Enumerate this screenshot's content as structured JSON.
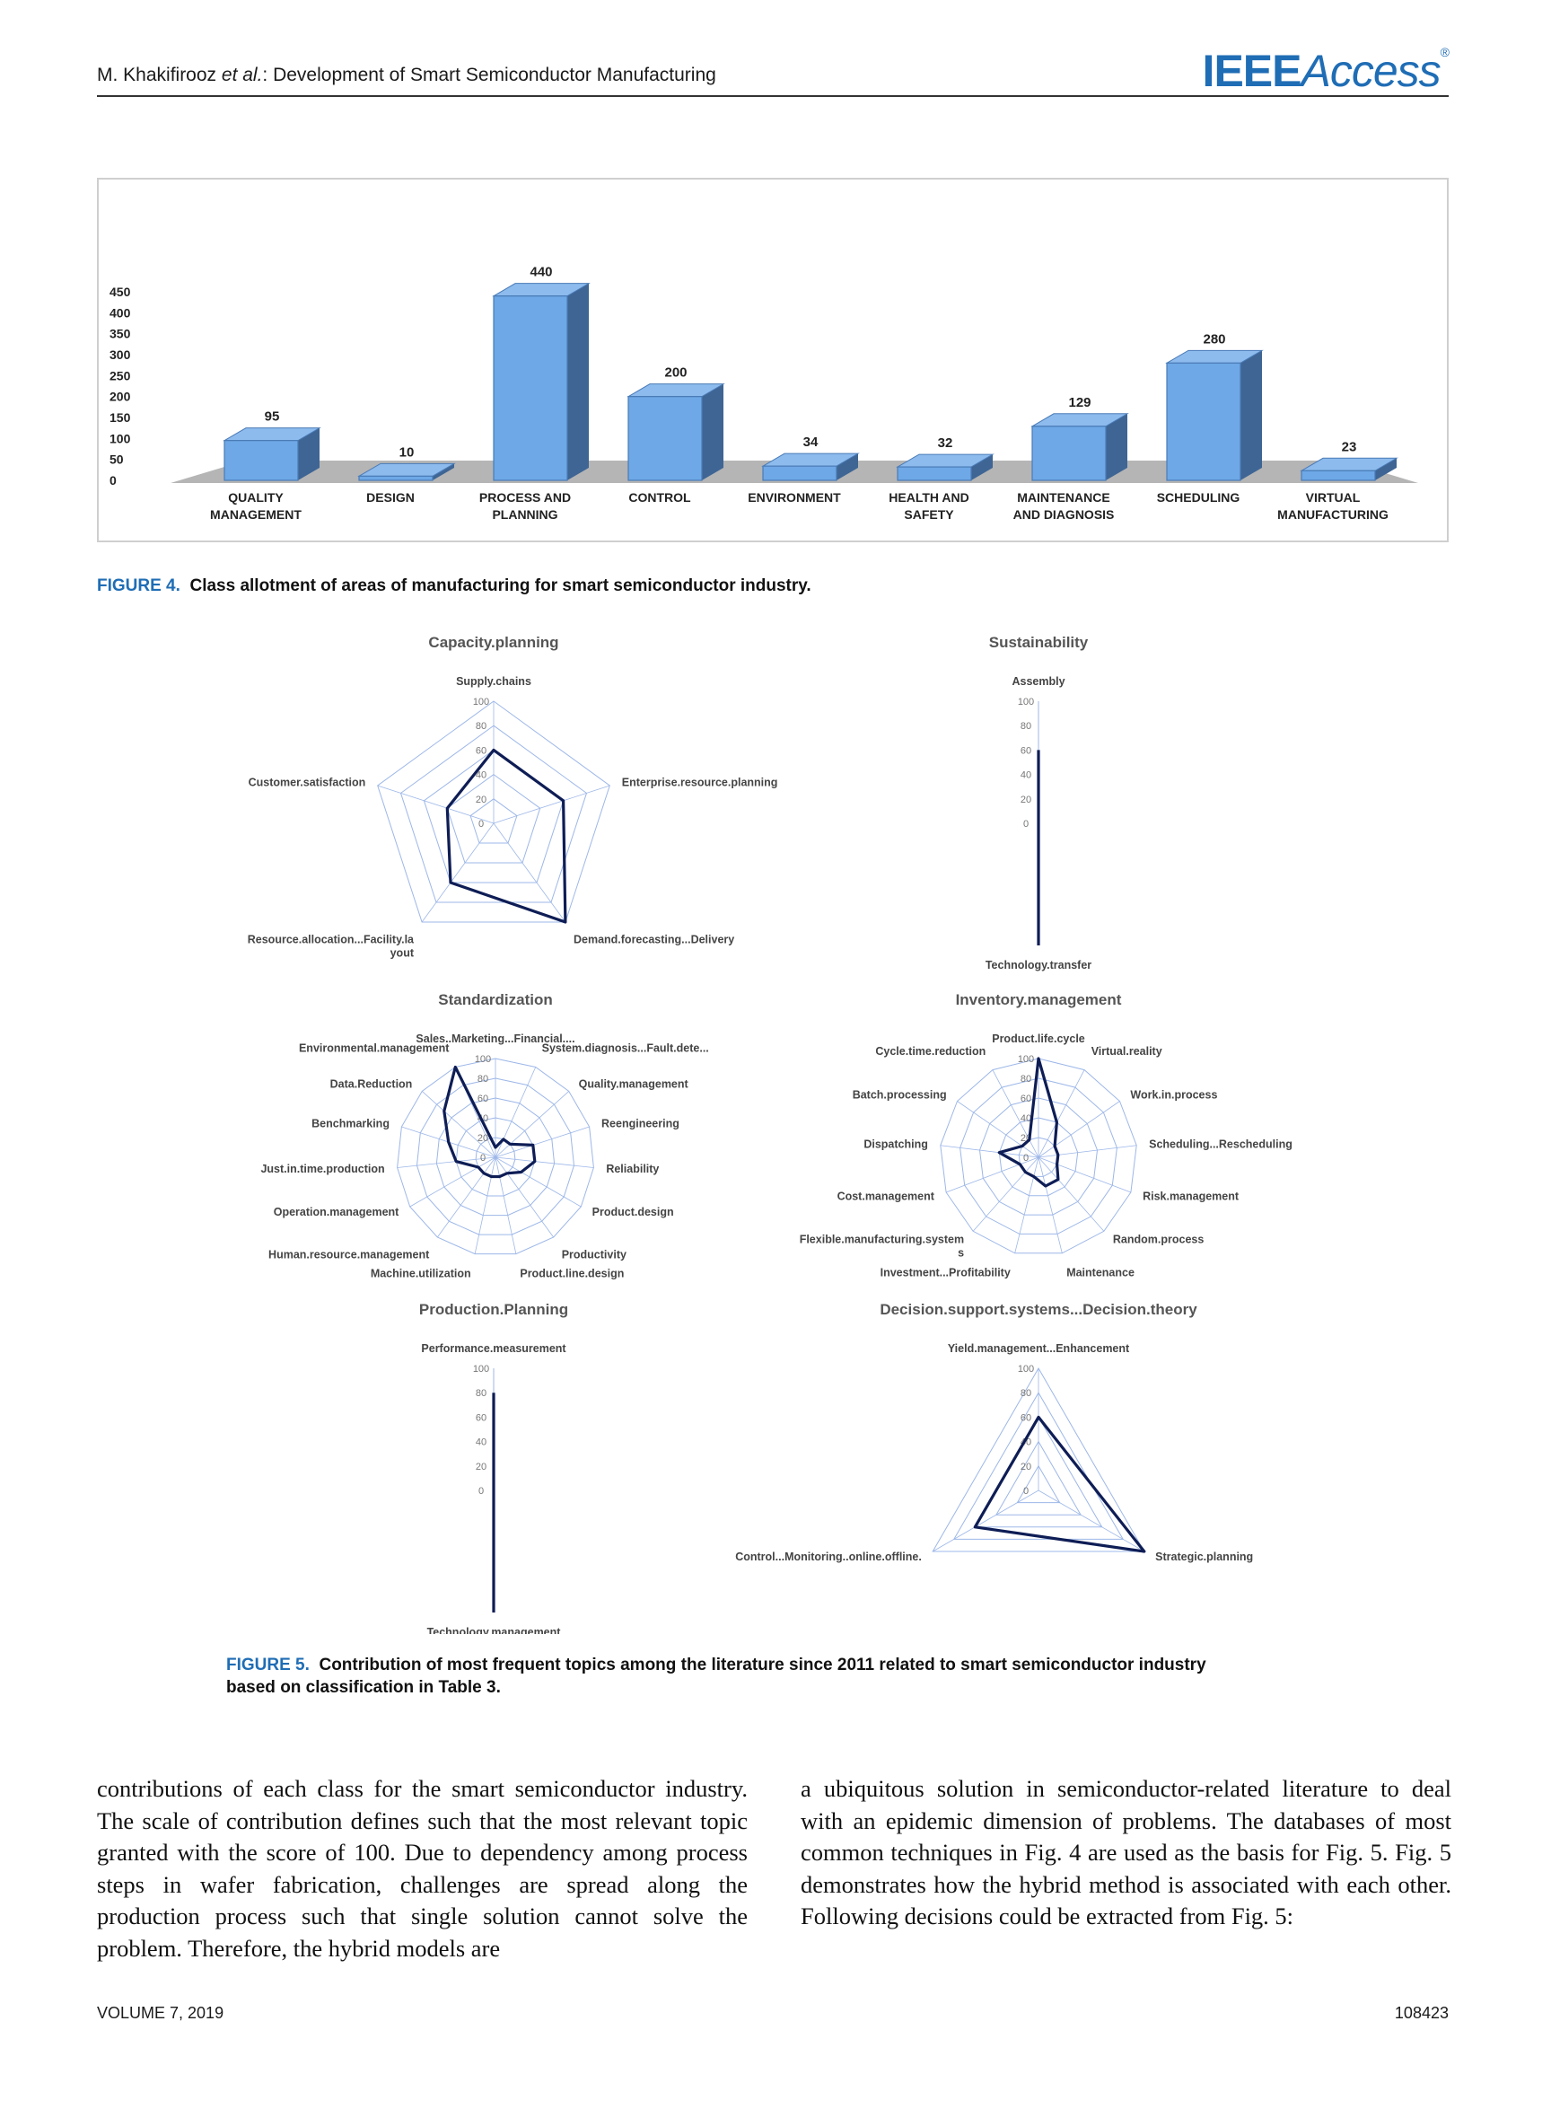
{
  "header": {
    "author_prefix": "M. Khakifirooz ",
    "author_etal": "et al.",
    "author_suffix": ": Development of Smart Semiconductor Manufacturing",
    "logo_ieee": "IEEE",
    "logo_access": "Access",
    "logo_mark": "®"
  },
  "figure4": {
    "label": "FIGURE 4.",
    "caption": "Class allotment of areas of manufacturing for smart semiconductor industry.",
    "chart_data": {
      "type": "bar",
      "categories": [
        [
          "QUALITY",
          "MANAGEMENT"
        ],
        [
          "DESIGN"
        ],
        [
          "PROCESS AND",
          "PLANNING"
        ],
        [
          "CONTROL"
        ],
        [
          "ENVIRONMENT"
        ],
        [
          "HEALTH AND",
          "SAFETY"
        ],
        [
          "MAINTENANCE",
          "AND DIAGNOSIS"
        ],
        [
          "SCHEDULING"
        ],
        [
          "VIRTUAL",
          "MANUFACTURING"
        ]
      ],
      "values": [
        95,
        10,
        440,
        200,
        34,
        32,
        129,
        280,
        23
      ],
      "yticks": [
        0,
        50,
        100,
        150,
        200,
        250,
        300,
        350,
        400,
        450
      ],
      "ylim": [
        0,
        450
      ],
      "bar_color": "#6ea8e6",
      "side_color": "#3e6594",
      "floor_color": "#b5b5b5"
    }
  },
  "figure5": {
    "label": "FIGURE 5.",
    "caption_line1": "Contribution of most frequent topics among the literature since 2011 related to smart semiconductor industry",
    "caption_line2": "based on classification in Table 3.",
    "chart_data": [
      {
        "type": "radar",
        "title": "Capacity.planning",
        "rticks": [
          0,
          20,
          40,
          60,
          80,
          100
        ],
        "axes": [
          {
            "label": [
              "Supply.chains"
            ],
            "value": 60
          },
          {
            "label": [
              "Enterprise.resource.planning"
            ],
            "value": 60
          },
          {
            "label": [
              "Demand.forecasting...Delivery"
            ],
            "value": 100
          },
          {
            "label": [
              "Resource.allocation...Facility.la",
              "yout"
            ],
            "value": 60
          },
          {
            "label": [
              "Customer.satisfaction"
            ],
            "value": 40
          }
        ]
      },
      {
        "type": "radar",
        "title": "Sustainability",
        "rticks": [
          0,
          20,
          40,
          60,
          80,
          100
        ],
        "axes": [
          {
            "label": [
              "Assembly"
            ],
            "value": 60
          },
          {
            "label": [
              "Technology.transfer"
            ],
            "value": 100
          }
        ]
      },
      {
        "type": "radar",
        "title": "Standardization",
        "rticks": [
          0,
          20,
          40,
          60,
          80,
          100
        ],
        "axes": [
          {
            "label": [
              "Sales..Marketing...Financial...."
            ],
            "value": 10
          },
          {
            "label": [
              "System.diagnosis...Fault.dete..."
            ],
            "value": 20
          },
          {
            "label": [
              "Quality.management"
            ],
            "value": 20
          },
          {
            "label": [
              "Reengineering"
            ],
            "value": 40
          },
          {
            "label": [
              "Reliability"
            ],
            "value": 40
          },
          {
            "label": [
              "Product.design"
            ],
            "value": 30
          },
          {
            "label": [
              "Productivity"
            ],
            "value": 20
          },
          {
            "label": [
              "Product.line.design"
            ],
            "value": 20
          },
          {
            "label": [
              "Machine.utilization"
            ],
            "value": 20
          },
          {
            "label": [
              "Human.resource.management"
            ],
            "value": 20
          },
          {
            "label": [
              "Operation.management"
            ],
            "value": 20
          },
          {
            "label": [
              "Just.in.time.production"
            ],
            "value": 40
          },
          {
            "label": [
              "Benchmarking"
            ],
            "value": 50
          },
          {
            "label": [
              "Data.Reduction"
            ],
            "value": 70
          },
          {
            "label": [
              "Environmental.management"
            ],
            "value": 100
          }
        ]
      },
      {
        "type": "radar",
        "title": "Inventory.management",
        "rticks": [
          0,
          20,
          40,
          60,
          80,
          100
        ],
        "axes": [
          {
            "label": [
              "Product.life.cycle"
            ],
            "value": 100
          },
          {
            "label": [
              "Virtual.reality"
            ],
            "value": 40
          },
          {
            "label": [
              "Work.in.process"
            ],
            "value": 20
          },
          {
            "label": [
              "Scheduling...Rescheduling"
            ],
            "value": 20
          },
          {
            "label": [
              "Risk.management"
            ],
            "value": 20
          },
          {
            "label": [
              "Random.process"
            ],
            "value": 30
          },
          {
            "label": [
              "Maintenance"
            ],
            "value": 30
          },
          {
            "label": [
              "Investment...Profitability"
            ],
            "value": 20
          },
          {
            "label": [
              "Flexible.manufacturing.system",
              "s"
            ],
            "value": 20
          },
          {
            "label": [
              "Cost.management"
            ],
            "value": 20
          },
          {
            "label": [
              "Dispatching"
            ],
            "value": 40
          },
          {
            "label": [
              "Batch.processing"
            ],
            "value": 20
          },
          {
            "label": [
              "Cycle.time.reduction"
            ],
            "value": 20
          }
        ]
      },
      {
        "type": "radar",
        "title": "Production.Planning",
        "rticks": [
          0,
          20,
          40,
          60,
          80,
          100
        ],
        "axes": [
          {
            "label": [
              "Performance.measurement"
            ],
            "value": 80
          },
          {
            "label": [
              "Technology.management"
            ],
            "value": 100
          }
        ]
      },
      {
        "type": "radar",
        "title": "Decision.support.systems...Decision.theory",
        "rticks": [
          0,
          20,
          40,
          60,
          80,
          100
        ],
        "axes": [
          {
            "label": [
              "Yield.management...Enhancement"
            ],
            "value": 60
          },
          {
            "label": [
              "Strategic.planning"
            ],
            "value": 100
          },
          {
            "label": [
              "Control...Monitoring..online.offline."
            ],
            "value": 60
          }
        ]
      }
    ]
  },
  "body": {
    "left": "contributions of each class for the smart semiconductor industry. The scale of contribution defines such that the most relevant topic granted with the score of 100. Due to dependency among process steps in wafer fabrication, challenges are spread along the production process such that single solution cannot solve the problem. Therefore, the hybrid models are",
    "right": "a ubiquitous solution in semiconductor-related literature to deal with an epidemic dimension of problems. The databases of most common techniques in Fig. 4 are used as the basis for Fig. 5. Fig. 5 demonstrates how the hybrid method is associated with each other. Following decisions could be extracted from Fig. 5:"
  },
  "footer": {
    "volume": "VOLUME 7, 2019",
    "page": "108423"
  }
}
